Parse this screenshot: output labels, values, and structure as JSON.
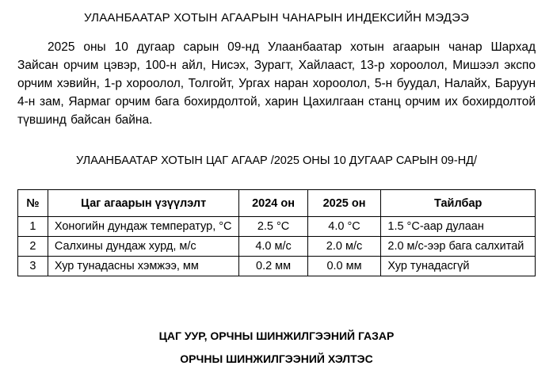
{
  "document": {
    "title": "УЛААНБААТАР ХОТЫН АГААРЫН ЧАНАРЫН ИНДЕКСИЙН МЭДЭЭ",
    "paragraph": "2025 оны 10 дугаар сарын 09-нд Улаанбаатар хотын агаарын чанар Шархад Зайсан орчим цэвэр, 100-н айл, Нисэх, Зурагт, Хайлааст, 13-р хороолол, Мишээл экспо орчим хэвийн, 1-р хороолол, Толгойт, Ургах наран хороолол, 5-н буудал, Налайх, Баруун 4-н зам, Яармаг орчим бага бохирдолтой, харин Цахилгаан станц орчим их бохирдолтой түвшинд байсан байна.",
    "subtitle": "УЛААНБААТАР ХОТЫН ЦАГ АГААР /2025 ОНЫ 10 ДУГААР САРЫН 09-НД/",
    "footer_line1": "ЦАГ УУР, ОРЧНЫ ШИНЖИЛГЭЭНИЙ ГАЗАР",
    "footer_line2": "ОРЧНЫ ШИНЖИЛГЭЭНИЙ ХЭЛТЭС"
  },
  "table": {
    "headers": [
      "№",
      "Цаг агаарын үзүүлэлт",
      "2024 он",
      "2025 он",
      "Тайлбар"
    ],
    "rows": [
      [
        "1",
        "Хоногийн дундаж температур, °С",
        "2.5 °С",
        "4.0 °С",
        "1.5 °С-аар дулаан"
      ],
      [
        "2",
        "Салхины дундаж хурд, м/с",
        "4.0 м/с",
        "2.0 м/с",
        "2.0 м/с-ээр бага салхитай"
      ],
      [
        "3",
        "Хур тунадасны хэмжээ, мм",
        "0.2 мм",
        "0.0 мм",
        "Хур тунадасгүй"
      ]
    ]
  }
}
